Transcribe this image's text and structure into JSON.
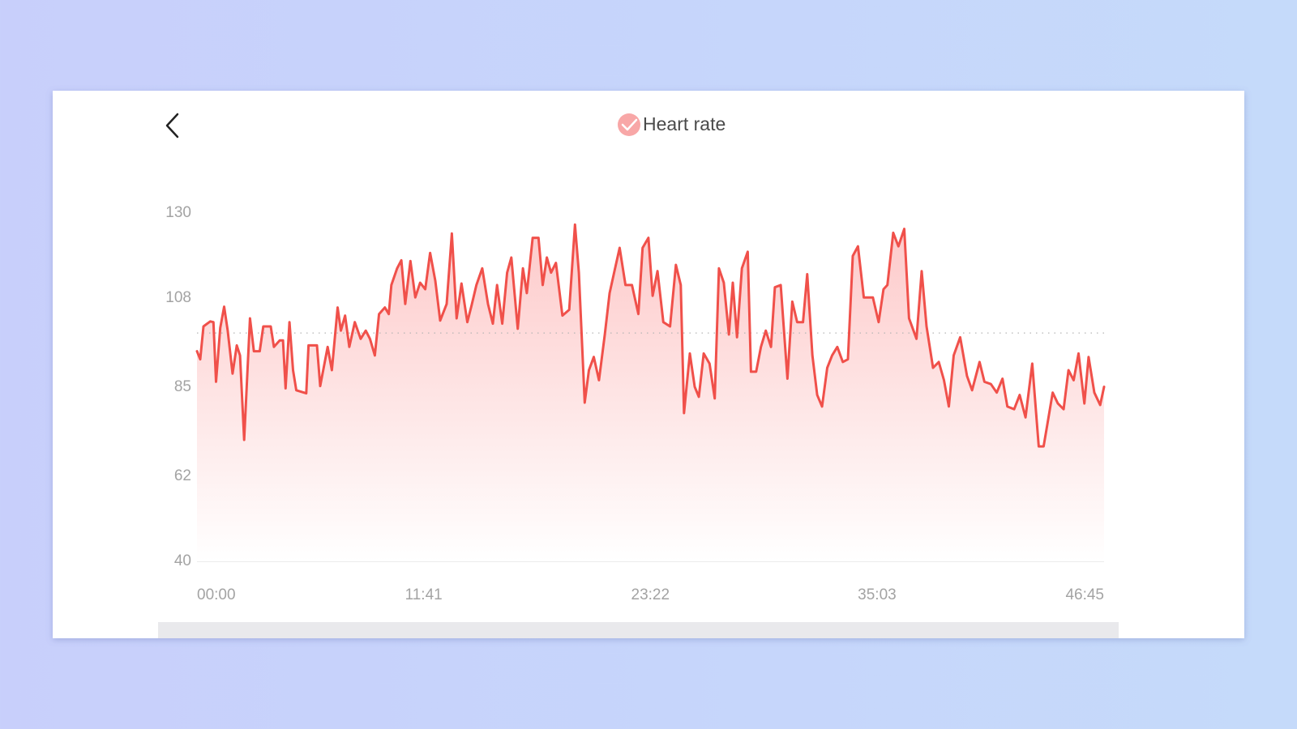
{
  "chart_data": {
    "type": "line",
    "series": [
      {
        "name": "Heart rate",
        "color": "#f0504a",
        "values": [
          94.3,
          92.2,
          100.7,
          102,
          101.8,
          86.4,
          100.3,
          105.8,
          99.6,
          88.5,
          95.8,
          93.2,
          71.4,
          102.8,
          94.3,
          94.3,
          100.7,
          100.7,
          95.4,
          97.1,
          97.1,
          84.7,
          101.8,
          89.4,
          84.2,
          83.4,
          95.8,
          95.8,
          85.3,
          95.4,
          89.4,
          105.6,
          99.6,
          103.5,
          95.4,
          101.8,
          97.5,
          99.6,
          97.5,
          93.2,
          103.9,
          105.6,
          103.9,
          111.4,
          115.7,
          117.8,
          106.5,
          117.6,
          108.2,
          112,
          110.3,
          119.7,
          112.5,
          102.2,
          106.5,
          124.7,
          102.8,
          111.8,
          101.8,
          106.1,
          111.4,
          115.7,
          106.5,
          101.4,
          111.4,
          101.4,
          114.6,
          118.5,
          100.1,
          115.7,
          109.3,
          123.6,
          123.6,
          111.4,
          118.5,
          114.6,
          117.1,
          103.5,
          105,
          127,
          114.6,
          81,
          89.4,
          92.8,
          86.8,
          98.6,
          109.3,
          115,
          121,
          111.4,
          111.4,
          103.9,
          121,
          123.6,
          108.6,
          115,
          101.8,
          100.7,
          116.6,
          111.4,
          78.3,
          93.7,
          85.1,
          82.5,
          93.7,
          91.1,
          82.1,
          115.7,
          112,
          98.6,
          112,
          97.9,
          115.7,
          120,
          89,
          89,
          95.4,
          99.6,
          95.4,
          110.8,
          111.4,
          87.2,
          107.1,
          101.8,
          101.8,
          114.2,
          93.2,
          83,
          80,
          90,
          93.2,
          95.4,
          91.5,
          92.2,
          118.9,
          121.4,
          108.2,
          108.2,
          101.8,
          110.3,
          111.4,
          124.9,
          121.4,
          125.9,
          102.8,
          97.5,
          115,
          100.7,
          90,
          91.5,
          86.8,
          80,
          93.2,
          97.9,
          87.9,
          84.2,
          91.5,
          86.4,
          85.8,
          83.6,
          87.2,
          80,
          79.3,
          83,
          77.2,
          91.1,
          69.7,
          69.7,
          75.1,
          83.6,
          80.8,
          79.3,
          89.4,
          86.8,
          93.7,
          80.8,
          92.8,
          83.6,
          80.4,
          85.1
        ]
      }
    ],
    "x": [
      0,
      10,
      20,
      41,
      51,
      59,
      72,
      84,
      95,
      110,
      123,
      133,
      146,
      164,
      176,
      194,
      205,
      228,
      238,
      256,
      266,
      274,
      286,
      297,
      307,
      338,
      345,
      371,
      381,
      404,
      417,
      435,
      445,
      458,
      471,
      488,
      506,
      522,
      535,
      550,
      563,
      581,
      593,
      601,
      619,
      632,
      644,
      660,
      675,
      690,
      706,
      721,
      737,
      752,
      772,
      788,
      803,
      818,
      836,
      849,
      864,
      882,
      900,
      915,
      928,
      944,
      959,
      972,
      992,
      1008,
      1020,
      1038,
      1056,
      1069,
      1082,
      1095,
      1110,
      1130,
      1151,
      1169,
      1181,
      1199,
      1212,
      1227,
      1243,
      1261,
      1276,
      1291,
      1307,
      1325,
      1345,
      1365,
      1378,
      1396,
      1409,
      1424,
      1442,
      1463,
      1481,
      1496,
      1506,
      1524,
      1539,
      1552,
      1567,
      1585,
      1601,
      1614,
      1629,
      1645,
      1657,
      1670,
      1685,
      1703,
      1713,
      1729,
      1744,
      1759,
      1775,
      1787,
      1805,
      1826,
      1841,
      1856,
      1874,
      1887,
      1903,
      1918,
      1933,
      1949,
      1964,
      1980,
      1997,
      2013,
      2028,
      2044,
      2062,
      2090,
      2108,
      2123,
      2135,
      2153,
      2169,
      2187,
      2202,
      2225,
      2241,
      2256,
      2276,
      2294,
      2310,
      2325,
      2340,
      2360,
      2381,
      2397,
      2420,
      2435,
      2455,
      2473,
      2491,
      2506,
      2527,
      2544,
      2562,
      2583,
      2603,
      2618,
      2629,
      2646,
      2662,
      2680,
      2695,
      2711,
      2726,
      2744,
      2757,
      2775,
      2793,
      2805
    ],
    "xlim": [
      0,
      2805
    ],
    "xticks": [
      {
        "value": 0,
        "label": "00:00"
      },
      {
        "value": 701,
        "label": "11:41"
      },
      {
        "value": 1402,
        "label": "23:22"
      },
      {
        "value": 2103,
        "label": "35:03"
      },
      {
        "value": 2805,
        "label": "46:45"
      }
    ],
    "ylim": [
      40,
      130
    ],
    "yticks": [
      40,
      62,
      85,
      108,
      130
    ],
    "reference_line": 99,
    "grid": false
  }
}
